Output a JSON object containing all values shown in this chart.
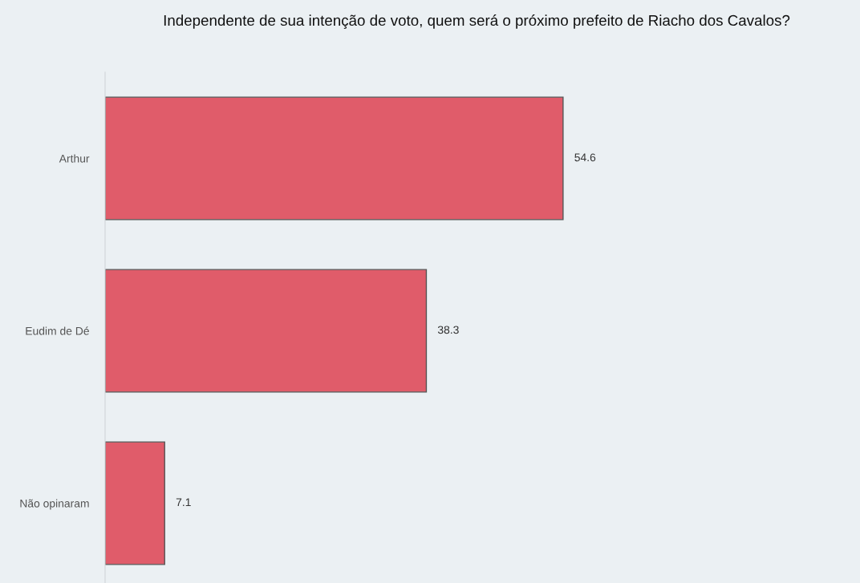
{
  "chart_data": {
    "type": "bar",
    "orientation": "horizontal",
    "title": "Independente de sua intenção de voto, quem será o próximo prefeito de Riacho dos Cavalos?",
    "categories": [
      "Arthur",
      "Eudim de Dé",
      "Não opinaram"
    ],
    "values": [
      54.6,
      38.3,
      7.1
    ],
    "color": "#e05c6a",
    "xlim": [
      0,
      90
    ],
    "data_labels": true,
    "grid": false,
    "legend": false,
    "tick_labels": "y"
  }
}
